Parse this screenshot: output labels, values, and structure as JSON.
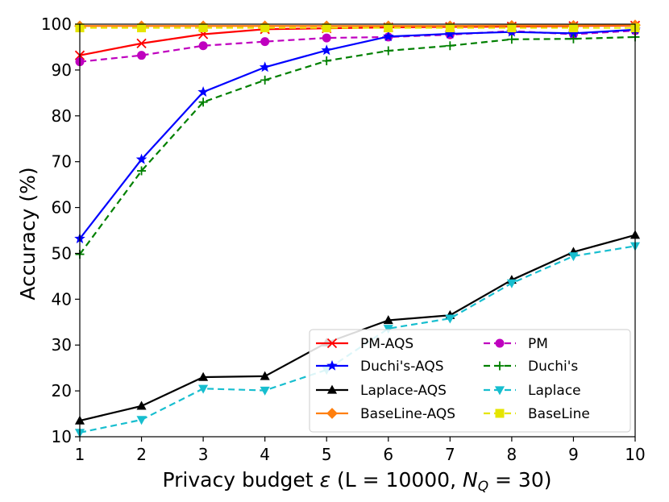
{
  "chart_data": {
    "type": "line",
    "title": "",
    "xlabel_prefix": "Privacy budget ",
    "xlabel_eps": "ε",
    "xlabel_mid": " (L = 10000, ",
    "xlabel_n": "N",
    "xlabel_sub": "Q",
    "xlabel_suffix": " = 30)",
    "ylabel": "Accuracy (%)",
    "xlim": [
      1,
      10
    ],
    "ylim": [
      10,
      100
    ],
    "x": [
      1,
      2,
      3,
      4,
      5,
      6,
      7,
      8,
      9,
      10
    ],
    "xticks": [
      "1",
      "2",
      "3",
      "4",
      "5",
      "6",
      "7",
      "8",
      "9",
      "10"
    ],
    "yticks": [
      "10",
      "20",
      "30",
      "40",
      "50",
      "60",
      "70",
      "80",
      "90",
      "100"
    ],
    "grid": false,
    "legend_position": "lower-right",
    "series": [
      {
        "name": "PM-AQS",
        "color": "#ff0000",
        "dashed": false,
        "marker": "x",
        "values": [
          93.2,
          95.8,
          97.8,
          98.9,
          99.1,
          99.3,
          99.4,
          99.5,
          99.6,
          99.7
        ]
      },
      {
        "name": "PM",
        "color": "#bf00bf",
        "dashed": true,
        "marker": "circle",
        "values": [
          91.8,
          93.2,
          95.3,
          96.2,
          97.0,
          97.2,
          97.7,
          98.5,
          97.8,
          98.6
        ]
      },
      {
        "name": "Duchi's-AQS",
        "color": "#0000ff",
        "dashed": false,
        "marker": "star",
        "values": [
          53.2,
          70.5,
          85.2,
          90.6,
          94.3,
          97.3,
          97.9,
          98.3,
          98.0,
          98.8
        ]
      },
      {
        "name": "Duchi's",
        "color": "#008000",
        "dashed": true,
        "marker": "plus",
        "values": [
          49.8,
          68.0,
          83.0,
          87.8,
          92.0,
          94.2,
          95.3,
          96.7,
          96.8,
          97.2
        ]
      },
      {
        "name": "Laplace-AQS",
        "color": "#000000",
        "dashed": false,
        "marker": "triangle-up",
        "values": [
          13.5,
          16.7,
          23.0,
          23.2,
          30.5,
          35.4,
          36.5,
          44.2,
          50.3,
          54.0
        ]
      },
      {
        "name": "Laplace",
        "color": "#17becf",
        "dashed": true,
        "marker": "triangle-down",
        "values": [
          10.9,
          13.7,
          20.5,
          20.1,
          24.6,
          33.6,
          35.8,
          43.5,
          49.4,
          51.6
        ]
      },
      {
        "name": "BaseLine-AQS",
        "color": "#ff7f0e",
        "dashed": false,
        "marker": "diamond",
        "values": [
          99.6,
          99.6,
          99.6,
          99.6,
          99.6,
          99.6,
          99.6,
          99.7,
          99.7,
          99.8
        ]
      },
      {
        "name": "BaseLine",
        "color": "#e5e500",
        "dashed": true,
        "marker": "square",
        "values": [
          99.2,
          99.2,
          99.2,
          99.2,
          99.2,
          99.2,
          99.2,
          99.2,
          99.2,
          99.2
        ]
      }
    ]
  }
}
